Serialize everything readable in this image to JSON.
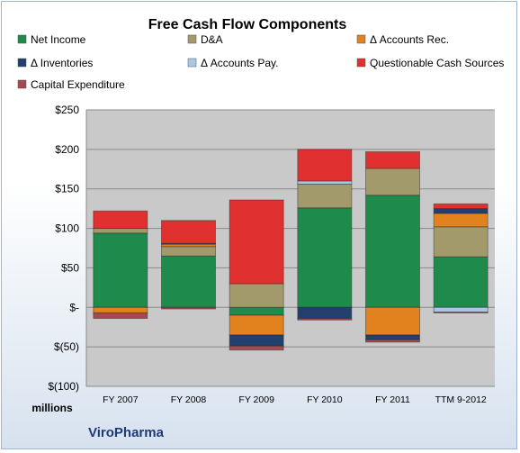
{
  "chart_data": {
    "type": "bar",
    "stacked": true,
    "title": "Free Cash Flow Components",
    "categories": [
      "FY 2007",
      "FY 2008",
      "FY 2009",
      "FY 2010",
      "FY 2011",
      "TTM 9-2012"
    ],
    "ylim": [
      -100,
      250
    ],
    "yticks": [
      250,
      200,
      150,
      100,
      50,
      0,
      -50,
      -100
    ],
    "ytick_labels": [
      "$250",
      "$200",
      "$150",
      "$100",
      "$50",
      "$-",
      "$(50)",
      "$(100)"
    ],
    "unit_label": "millions",
    "legend_position": "top",
    "grid": true,
    "series": [
      {
        "name": "Net Income",
        "color": "#1e8a4c",
        "values": [
          94,
          65,
          -10,
          126,
          142,
          64
        ]
      },
      {
        "name": "D&A",
        "color": "#a39a6c",
        "values": [
          6,
          12,
          30,
          30,
          34,
          38
        ]
      },
      {
        "name": "Δ Accounts Rec.",
        "color": "#e2821e",
        "values": [
          -7,
          3,
          -25,
          0,
          -35,
          17
        ]
      },
      {
        "name": "Δ Inventories",
        "color": "#22406e",
        "values": [
          0,
          1,
          -14,
          -14,
          -6,
          6
        ]
      },
      {
        "name": "Δ Accounts Pay.",
        "color": "#a9c7e6",
        "values": [
          0,
          0,
          0,
          4,
          0,
          -6
        ]
      },
      {
        "name": "Questionable Cash Sources",
        "color": "#e03030",
        "values": [
          22,
          29,
          106,
          40,
          21,
          6
        ]
      },
      {
        "name": "Capital Expenditure",
        "color": "#a24a52",
        "values": [
          -7,
          -2,
          -5,
          -2,
          -3,
          -1
        ]
      }
    ]
  },
  "footer": {
    "company": "ViroPharma"
  }
}
